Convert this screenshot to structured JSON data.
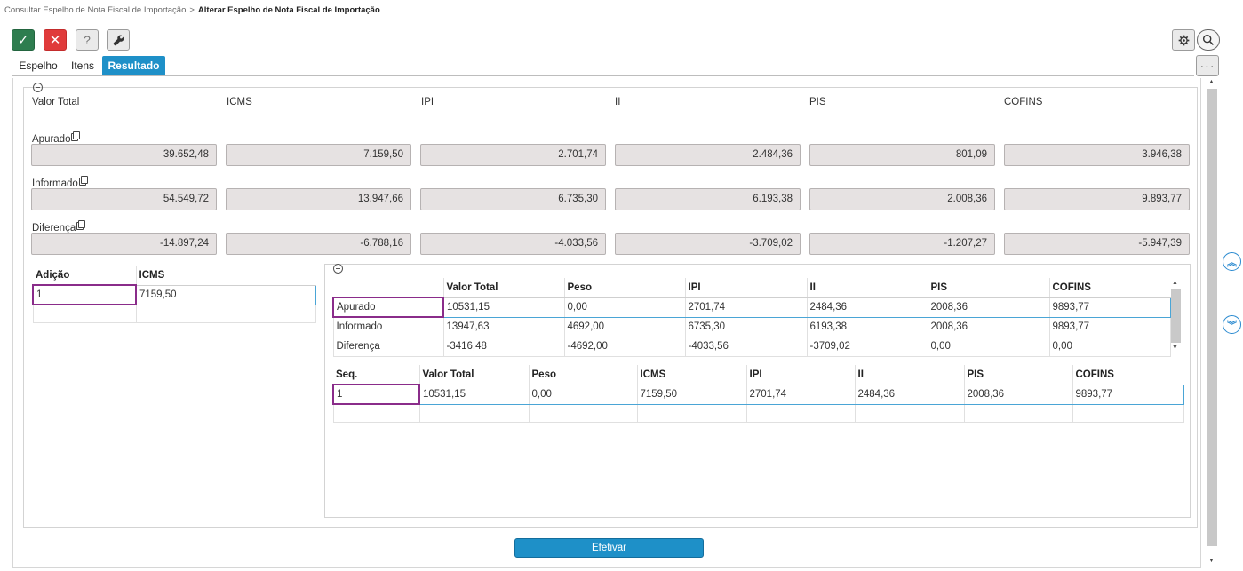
{
  "breadcrumb": {
    "parent": "Consultar Espelho de Nota Fiscal de Importação",
    "separator": ">",
    "current": "Alterar Espelho de Nota Fiscal de Importação"
  },
  "toolbar": {
    "confirm_icon": "✓",
    "cancel_icon": "✕",
    "help_label": "?",
    "tool_icon": "wrench-icon",
    "settings_icon": "gear-icon",
    "search_icon": "search-icon",
    "more_label": "···"
  },
  "tabs": [
    "Espelho",
    "Itens",
    "Resultado"
  ],
  "summary": {
    "columns": [
      "Valor Total",
      "ICMS",
      "IPI",
      "II",
      "PIS",
      "COFINS"
    ],
    "rows": [
      {
        "label": "Apurado",
        "values": [
          "39.652,48",
          "7.159,50",
          "2.701,74",
          "2.484,36",
          "801,09",
          "3.946,38"
        ]
      },
      {
        "label": "Informado",
        "values": [
          "54.549,72",
          "13.947,66",
          "6.735,30",
          "6.193,38",
          "2.008,36",
          "9.893,77"
        ]
      },
      {
        "label": "Diferença",
        "values": [
          "-14.897,24",
          "-6.788,16",
          "-4.033,56",
          "-3.709,02",
          "-1.207,27",
          "-5.947,39"
        ]
      }
    ]
  },
  "adicao_table": {
    "headers": [
      "Adição",
      "ICMS"
    ],
    "rows": [
      [
        "1",
        "7159,50"
      ]
    ]
  },
  "compare_table": {
    "headers": [
      "",
      "Valor Total",
      "Peso",
      "IPI",
      "II",
      "PIS",
      "COFINS"
    ],
    "rows": [
      [
        "Apurado",
        "10531,15",
        "0,00",
        "2701,74",
        "2484,36",
        "2008,36",
        "9893,77"
      ],
      [
        "Informado",
        "13947,63",
        "4692,00",
        "6735,30",
        "6193,38",
        "2008,36",
        "9893,77"
      ],
      [
        "Diferença",
        "-3416,48",
        "-4692,00",
        "-4033,56",
        "-3709,02",
        "0,00",
        "0,00"
      ]
    ]
  },
  "seq_table": {
    "headers": [
      "Seq.",
      "Valor Total",
      "Peso",
      "ICMS",
      "IPI",
      "II",
      "PIS",
      "COFINS"
    ],
    "rows": [
      [
        "1",
        "10531,15",
        "0,00",
        "7159,50",
        "2701,74",
        "2484,36",
        "2008,36",
        "9893,77"
      ]
    ]
  },
  "side_nav": {
    "up_icon": "double-chevron-up-icon",
    "down_icon": "double-chevron-down-icon"
  },
  "actions": {
    "efetivar": "Efetivar"
  },
  "colors": {
    "accent": "#1e90c8",
    "confirm": "#2e7d4f",
    "cancel": "#e03b3b",
    "selection": "#8a2c8a"
  }
}
